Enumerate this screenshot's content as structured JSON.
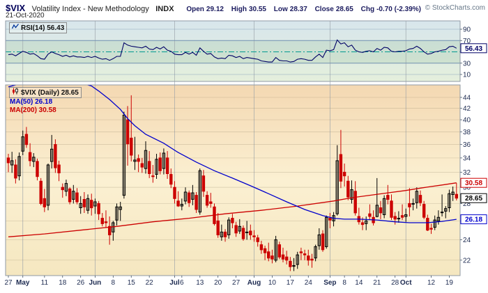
{
  "header": {
    "symbol": "$VIX",
    "description": "Volatility Index - New Methodology",
    "exchange": "INDX",
    "date": "21-Oct-2020",
    "quote": {
      "open_label": "Open",
      "open": "29.12",
      "high_label": "High",
      "high": "30.55",
      "low_label": "Low",
      "low": "28.37",
      "close_label": "Close",
      "close": "28.65",
      "chg_label": "Chg",
      "chg": "-0.70 (-2.39%)"
    },
    "copyright": "© StockCharts.com"
  },
  "legend": {
    "rsi": "RSI(14) 56.43",
    "price": "$VIX (Daily) 28.65",
    "ma50": "MA(50) 26.18",
    "ma200": "MA(200) 30.58"
  },
  "chart_data": {
    "type": "candlestick",
    "symbol": "$VIX",
    "period": "Daily",
    "colors": {
      "up": "#000000",
      "down": "#cc0000",
      "ma50": "#0000cc",
      "ma200": "#cc0000",
      "rsi": "#000066"
    },
    "month_gridline_indices": [
      4,
      24,
      46,
      68,
      89,
      110
    ],
    "x_labels": [
      {
        "i": 0,
        "t": "27",
        "m": false
      },
      {
        "i": 4,
        "t": "May",
        "m": true
      },
      {
        "i": 10,
        "t": "11",
        "m": false
      },
      {
        "i": 15,
        "t": "18",
        "m": false
      },
      {
        "i": 20,
        "t": "26",
        "m": false
      },
      {
        "i": 24,
        "t": "Jun",
        "m": true
      },
      {
        "i": 29,
        "t": "8",
        "m": false
      },
      {
        "i": 34,
        "t": "15",
        "m": false
      },
      {
        "i": 39,
        "t": "22",
        "m": false
      },
      {
        "i": 46,
        "t": "Jul",
        "m": true
      },
      {
        "i": 48,
        "t": "6",
        "m": false
      },
      {
        "i": 53,
        "t": "13",
        "m": false
      },
      {
        "i": 58,
        "t": "20",
        "m": false
      },
      {
        "i": 63,
        "t": "27",
        "m": false
      },
      {
        "i": 68,
        "t": "Aug",
        "m": true
      },
      {
        "i": 73,
        "t": "10",
        "m": false
      },
      {
        "i": 78,
        "t": "17",
        "m": false
      },
      {
        "i": 83,
        "t": "24",
        "m": false
      },
      {
        "i": 89,
        "t": "Sep",
        "m": true
      },
      {
        "i": 93,
        "t": "8",
        "m": false
      },
      {
        "i": 97,
        "t": "14",
        "m": false
      },
      {
        "i": 102,
        "t": "21",
        "m": false
      },
      {
        "i": 107,
        "t": "28",
        "m": false
      },
      {
        "i": 110,
        "t": "Oct",
        "m": true
      },
      {
        "i": 117,
        "t": "12",
        "m": false
      },
      {
        "i": 122,
        "t": "19",
        "m": false
      }
    ],
    "rsi_panel": {
      "indicator": "RSI(14)",
      "last_label": "56.43",
      "overbought": 70,
      "oversold": 30,
      "midline": 50,
      "ylim": [
        0,
        100
      ],
      "yticks": [
        90,
        70,
        30,
        10
      ],
      "values": [
        45,
        46,
        43,
        47,
        51,
        49,
        46,
        47,
        43,
        38,
        37,
        46,
        50,
        47,
        45,
        42,
        44,
        41,
        43,
        41,
        41,
        40,
        42,
        40,
        42,
        39,
        37,
        38,
        35,
        38,
        42,
        42,
        66,
        62,
        60,
        59,
        58,
        57,
        60,
        55,
        54,
        58,
        55,
        59,
        53,
        51,
        46,
        45,
        45,
        49,
        46,
        49,
        44,
        57,
        51,
        46,
        47,
        41,
        38,
        39,
        38,
        44,
        43,
        40,
        42,
        38,
        40,
        39,
        38,
        37,
        34,
        33,
        32,
        32,
        40,
        35,
        34,
        34,
        32,
        33,
        37,
        38,
        37,
        35,
        35,
        41,
        46,
        40,
        53,
        52,
        54,
        71,
        64,
        66,
        59,
        62,
        53,
        50,
        49,
        51,
        52,
        50,
        56,
        53,
        58,
        57,
        51,
        50,
        51,
        51,
        52,
        55,
        56,
        60,
        56,
        50,
        46,
        47,
        50,
        51,
        53,
        54,
        59,
        60,
        56.43
      ]
    },
    "price_panel": {
      "ylog": true,
      "ydomain": [
        20.6,
        46.4
      ],
      "yticks": [
        44,
        42,
        40,
        38,
        36,
        34,
        32,
        30,
        28,
        26,
        24,
        22
      ],
      "last_close_label": "28.65",
      "ma50_last_label": "26.18",
      "ma200_last_label": "30.58",
      "ohlc": [
        [
          34.0,
          34.6,
          32.0,
          33.3
        ],
        [
          33.0,
          34.9,
          31.9,
          33.6
        ],
        [
          33.0,
          33.8,
          30.5,
          31.2
        ],
        [
          31.5,
          34.8,
          30.9,
          34.2
        ],
        [
          35.0,
          38.2,
          34.4,
          37.2
        ],
        [
          37.6,
          38.8,
          35.5,
          36.0
        ],
        [
          34.8,
          36.2,
          32.8,
          33.6
        ],
        [
          33.5,
          34.7,
          32.7,
          34.1
        ],
        [
          33.5,
          33.9,
          30.9,
          31.4
        ],
        [
          30.8,
          31.2,
          27.8,
          28.0
        ],
        [
          28.6,
          29.8,
          27.0,
          27.6
        ],
        [
          27.8,
          33.2,
          27.2,
          33.0
        ],
        [
          33.5,
          37.5,
          32.5,
          35.3
        ],
        [
          36.0,
          36.8,
          31.9,
          32.6
        ],
        [
          33.0,
          33.6,
          30.8,
          31.9
        ],
        [
          30.0,
          30.5,
          28.7,
          29.7
        ],
        [
          29.5,
          31.0,
          28.9,
          30.5
        ],
        [
          29.8,
          30.0,
          27.9,
          28.2
        ],
        [
          28.5,
          30.3,
          28.0,
          29.5
        ],
        [
          29.3,
          29.9,
          27.9,
          28.2
        ],
        [
          27.5,
          28.9,
          26.8,
          28.0
        ],
        [
          28.5,
          29.4,
          26.9,
          27.6
        ],
        [
          27.2,
          29.1,
          26.8,
          28.6
        ],
        [
          28.4,
          29.2,
          26.6,
          27.5
        ],
        [
          27.7,
          28.6,
          26.8,
          28.2
        ],
        [
          28.0,
          28.3,
          26.1,
          26.8
        ],
        [
          26.3,
          26.9,
          25.4,
          25.7
        ],
        [
          25.9,
          27.2,
          25.3,
          25.8
        ],
        [
          25.4,
          26.5,
          23.5,
          24.5
        ],
        [
          24.8,
          26.0,
          23.9,
          25.8
        ],
        [
          26.1,
          28.0,
          25.5,
          27.6
        ],
        [
          27.3,
          28.2,
          26.0,
          27.6
        ],
        [
          29.0,
          41.4,
          28.6,
          40.8
        ],
        [
          40.0,
          42.4,
          32.9,
          36.1
        ],
        [
          37.0,
          44.4,
          33.5,
          34.4
        ],
        [
          33.5,
          37.2,
          32.3,
          33.7
        ],
        [
          33.9,
          34.5,
          32.0,
          33.5
        ],
        [
          33.2,
          34.0,
          31.9,
          32.7
        ],
        [
          32.5,
          36.5,
          31.8,
          35.1
        ],
        [
          33.5,
          35.0,
          31.2,
          31.8
        ],
        [
          31.5,
          33.0,
          30.6,
          31.4
        ],
        [
          31.7,
          34.6,
          31.1,
          33.8
        ],
        [
          34.0,
          34.8,
          31.7,
          32.2
        ],
        [
          32.5,
          35.4,
          31.7,
          34.7
        ],
        [
          34.0,
          35.0,
          31.1,
          31.8
        ],
        [
          31.7,
          32.5,
          29.9,
          30.4
        ],
        [
          30.0,
          30.8,
          28.0,
          28.6
        ],
        [
          28.3,
          29.5,
          27.6,
          27.7
        ],
        [
          27.7,
          28.6,
          27.2,
          27.9
        ],
        [
          28.3,
          30.0,
          27.9,
          29.4
        ],
        [
          29.3,
          29.6,
          27.6,
          28.1
        ],
        [
          28.5,
          30.3,
          27.8,
          29.3
        ],
        [
          29.0,
          29.4,
          26.9,
          27.3
        ],
        [
          27.0,
          32.5,
          26.7,
          32.2
        ],
        [
          31.5,
          32.3,
          28.8,
          29.5
        ],
        [
          29.0,
          29.5,
          27.5,
          27.8
        ],
        [
          28.2,
          29.3,
          27.5,
          28.0
        ],
        [
          27.6,
          28.0,
          25.5,
          25.7
        ],
        [
          26.0,
          26.9,
          24.2,
          24.5
        ],
        [
          24.3,
          25.6,
          23.9,
          24.8
        ],
        [
          24.8,
          25.1,
          23.8,
          24.3
        ],
        [
          24.5,
          26.4,
          24.1,
          26.1
        ],
        [
          26.3,
          26.8,
          25.2,
          25.8
        ],
        [
          25.5,
          25.9,
          24.3,
          24.7
        ],
        [
          24.9,
          26.2,
          24.6,
          25.4
        ],
        [
          25.2,
          25.5,
          23.9,
          24.1
        ],
        [
          24.8,
          26.0,
          24.0,
          24.8
        ],
        [
          24.9,
          25.6,
          24.0,
          24.5
        ],
        [
          24.4,
          25.0,
          23.8,
          24.3
        ],
        [
          24.2,
          24.5,
          23.3,
          23.8
        ],
        [
          23.5,
          23.9,
          22.6,
          23.0
        ],
        [
          23.1,
          23.4,
          22.0,
          22.7
        ],
        [
          22.8,
          23.7,
          21.9,
          22.2
        ],
        [
          22.4,
          23.0,
          21.7,
          22.1
        ],
        [
          22.0,
          24.4,
          21.8,
          24.0
        ],
        [
          23.5,
          23.8,
          22.1,
          22.3
        ],
        [
          22.5,
          23.2,
          21.8,
          22.1
        ],
        [
          22.3,
          22.9,
          21.6,
          22.0
        ],
        [
          21.9,
          22.3,
          21.0,
          21.4
        ],
        [
          21.5,
          22.2,
          21.0,
          21.5
        ],
        [
          21.6,
          22.8,
          21.2,
          22.5
        ],
        [
          22.8,
          23.2,
          22.0,
          22.7
        ],
        [
          22.6,
          23.0,
          22.0,
          22.5
        ],
        [
          22.4,
          23.0,
          21.5,
          22.0
        ],
        [
          22.1,
          22.6,
          21.3,
          22.0
        ],
        [
          22.2,
          23.5,
          21.9,
          23.3
        ],
        [
          23.4,
          25.2,
          23.0,
          24.5
        ],
        [
          24.6,
          25.0,
          22.8,
          23.0
        ],
        [
          23.3,
          26.6,
          23.1,
          26.4
        ],
        [
          26.3,
          26.9,
          25.2,
          26.1
        ],
        [
          26.0,
          27.0,
          25.4,
          26.6
        ],
        [
          26.8,
          35.9,
          26.6,
          33.6
        ],
        [
          34.5,
          38.3,
          29.9,
          30.8
        ],
        [
          32.0,
          33.2,
          30.1,
          31.5
        ],
        [
          30.8,
          31.5,
          28.4,
          28.8
        ],
        [
          28.5,
          30.9,
          28.0,
          29.7
        ],
        [
          29.5,
          30.8,
          26.6,
          26.9
        ],
        [
          26.5,
          27.5,
          25.6,
          25.9
        ],
        [
          25.8,
          26.4,
          25.0,
          25.6
        ],
        [
          25.7,
          26.5,
          25.0,
          26.0
        ],
        [
          26.8,
          27.9,
          26.1,
          26.5
        ],
        [
          26.4,
          27.2,
          25.5,
          25.8
        ],
        [
          26.5,
          31.2,
          26.4,
          27.8
        ],
        [
          27.5,
          28.3,
          26.2,
          26.9
        ],
        [
          26.7,
          29.0,
          26.3,
          28.6
        ],
        [
          29.0,
          30.3,
          27.9,
          28.5
        ],
        [
          28.3,
          29.1,
          26.1,
          26.4
        ],
        [
          26.5,
          27.0,
          25.6,
          26.2
        ],
        [
          26.3,
          27.1,
          25.8,
          26.3
        ],
        [
          26.6,
          27.9,
          26.1,
          26.4
        ],
        [
          26.5,
          27.4,
          25.9,
          26.7
        ],
        [
          28.0,
          29.9,
          26.5,
          27.6
        ],
        [
          28.0,
          28.6,
          27.2,
          28.0
        ],
        [
          28.1,
          30.0,
          27.4,
          29.5
        ],
        [
          29.0,
          29.6,
          27.7,
          28.1
        ],
        [
          27.9,
          28.3,
          26.2,
          26.4
        ],
        [
          26.3,
          26.7,
          24.9,
          25.0
        ],
        [
          25.2,
          25.7,
          24.6,
          25.1
        ],
        [
          25.3,
          26.6,
          25.0,
          26.1
        ],
        [
          26.0,
          27.2,
          25.6,
          26.4
        ],
        [
          27.0,
          29.1,
          26.5,
          27.0
        ],
        [
          27.1,
          27.7,
          26.3,
          27.4
        ],
        [
          27.5,
          29.7,
          27.0,
          29.2
        ],
        [
          29.1,
          30.1,
          28.3,
          29.4
        ],
        [
          29.12,
          30.55,
          28.37,
          28.65
        ]
      ],
      "ma50": [
        [
          0,
          46.0
        ],
        [
          9,
          47.8
        ],
        [
          14,
          47.5
        ],
        [
          19,
          47.0
        ],
        [
          23,
          46.2
        ],
        [
          25,
          45.2
        ],
        [
          28,
          43.6
        ],
        [
          31,
          41.8
        ],
        [
          33,
          40.2
        ],
        [
          35,
          39.0
        ],
        [
          38,
          37.6
        ],
        [
          43,
          36.2
        ],
        [
          47,
          34.8
        ],
        [
          52,
          33.4
        ],
        [
          57,
          32.2
        ],
        [
          62,
          31.2
        ],
        [
          67,
          30.2
        ],
        [
          72,
          29.2
        ],
        [
          77,
          28.2
        ],
        [
          82,
          27.3
        ],
        [
          87,
          26.6
        ],
        [
          90,
          26.3
        ],
        [
          93,
          26.2
        ],
        [
          97,
          26.2
        ],
        [
          102,
          26.1
        ],
        [
          107,
          25.9
        ],
        [
          111,
          25.8
        ],
        [
          116,
          25.8
        ],
        [
          120,
          25.95
        ],
        [
          124,
          26.18
        ]
      ],
      "ma200": [
        [
          0,
          24.3
        ],
        [
          10,
          24.6
        ],
        [
          20,
          25.0
        ],
        [
          30,
          25.4
        ],
        [
          40,
          25.9
        ],
        [
          50,
          26.3
        ],
        [
          60,
          26.8
        ],
        [
          70,
          27.2
        ],
        [
          80,
          27.7
        ],
        [
          90,
          28.3
        ],
        [
          95,
          28.7
        ],
        [
          100,
          29.0
        ],
        [
          105,
          29.3
        ],
        [
          110,
          29.6
        ],
        [
          114,
          29.9
        ],
        [
          117,
          30.1
        ],
        [
          120,
          30.3
        ],
        [
          124,
          30.58
        ]
      ]
    }
  }
}
